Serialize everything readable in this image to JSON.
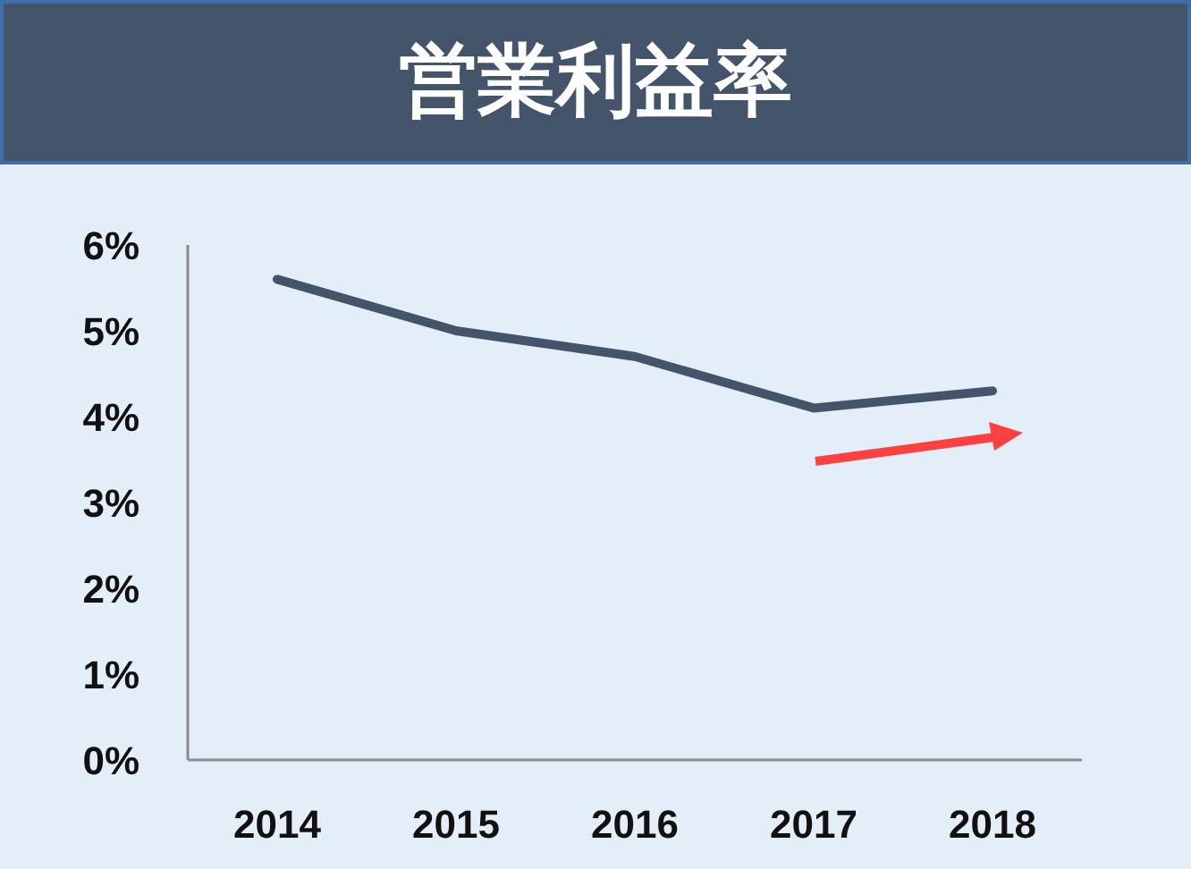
{
  "chart_data": {
    "type": "line",
    "title": "営業利益率",
    "categories": [
      "2014",
      "2015",
      "2016",
      "2017",
      "2018"
    ],
    "series": [
      {
        "color": "#44546a",
        "values": [
          5.6,
          5.0,
          4.7,
          4.1,
          4.3
        ]
      }
    ],
    "ylim": [
      0,
      6
    ],
    "yticks": [
      {
        "value": 0,
        "label": "0%"
      },
      {
        "value": 1,
        "label": "1%"
      },
      {
        "value": 2,
        "label": "2%"
      },
      {
        "value": 3,
        "label": "3%"
      },
      {
        "value": 4,
        "label": "4%"
      },
      {
        "value": 5,
        "label": "5%"
      },
      {
        "value": 6,
        "label": "6%"
      }
    ],
    "marker": "none"
  }
}
